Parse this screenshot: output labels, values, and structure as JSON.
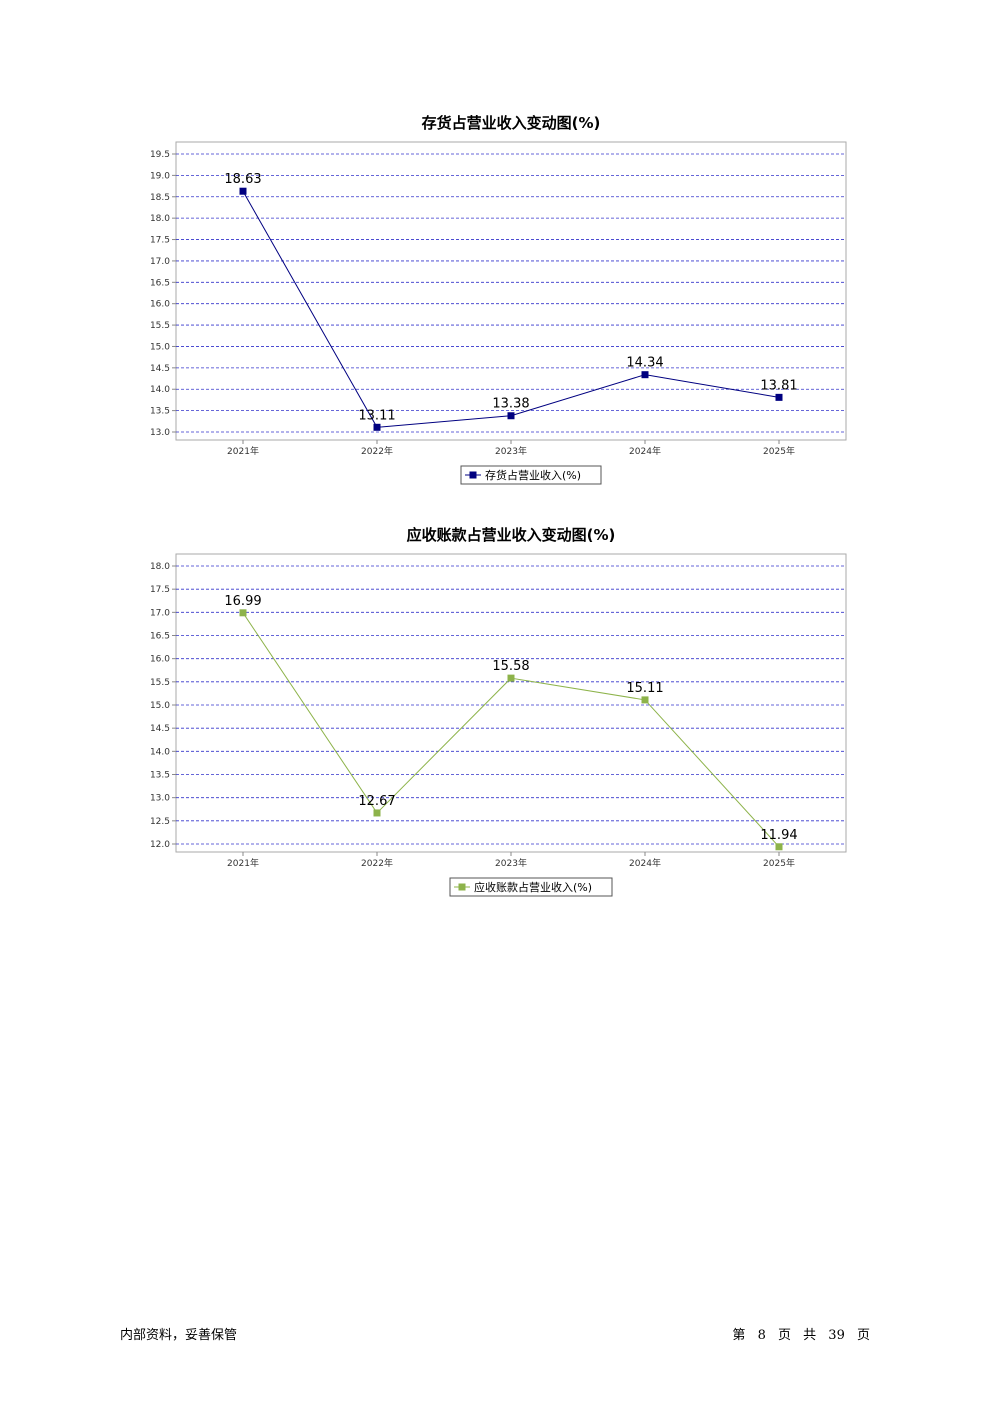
{
  "chart_data": [
    {
      "type": "line",
      "title": "存货占营业收入变动图(%)",
      "categories": [
        "2021年",
        "2022年",
        "2023年",
        "2024年",
        "2025年"
      ],
      "series": [
        {
          "name": "存货占营业收入(%)",
          "values": [
            18.63,
            13.11,
            13.38,
            14.34,
            13.81
          ],
          "color": "#000080",
          "labels": [
            "18.63",
            "13.11",
            "13.38",
            "14.34",
            "13.81"
          ]
        }
      ],
      "yticks": [
        "13.0",
        "13.5",
        "14.0",
        "14.5",
        "15.0",
        "15.5",
        "16.0",
        "16.5",
        "17.0",
        "17.5",
        "18.0",
        "18.5",
        "19.0",
        "19.5"
      ],
      "ylim": [
        13.0,
        19.5
      ],
      "grid": true,
      "legend": "bottom-center"
    },
    {
      "type": "line",
      "title": "应收账款占营业收入变动图(%)",
      "categories": [
        "2021年",
        "2022年",
        "2023年",
        "2024年",
        "2025年"
      ],
      "series": [
        {
          "name": "应收账款占营业收入(%)",
          "values": [
            16.99,
            12.67,
            15.58,
            15.11,
            11.94
          ],
          "color": "#8db34a",
          "labels": [
            "16.99",
            "12.67",
            "15.58",
            "15.11",
            "11.94"
          ]
        }
      ],
      "yticks": [
        "12.0",
        "12.5",
        "13.0",
        "13.5",
        "14.0",
        "14.5",
        "15.0",
        "15.5",
        "16.0",
        "16.5",
        "17.0",
        "17.5",
        "18.0"
      ],
      "ylim": [
        12.0,
        18.0
      ],
      "grid": true,
      "legend": "bottom-center"
    }
  ],
  "footer": {
    "left": "内部资料，妥善保管",
    "page_prefix": "第",
    "page_number": "8",
    "page_unit": "页",
    "total_prefix": "共",
    "total_pages": "39",
    "total_unit": "页"
  }
}
